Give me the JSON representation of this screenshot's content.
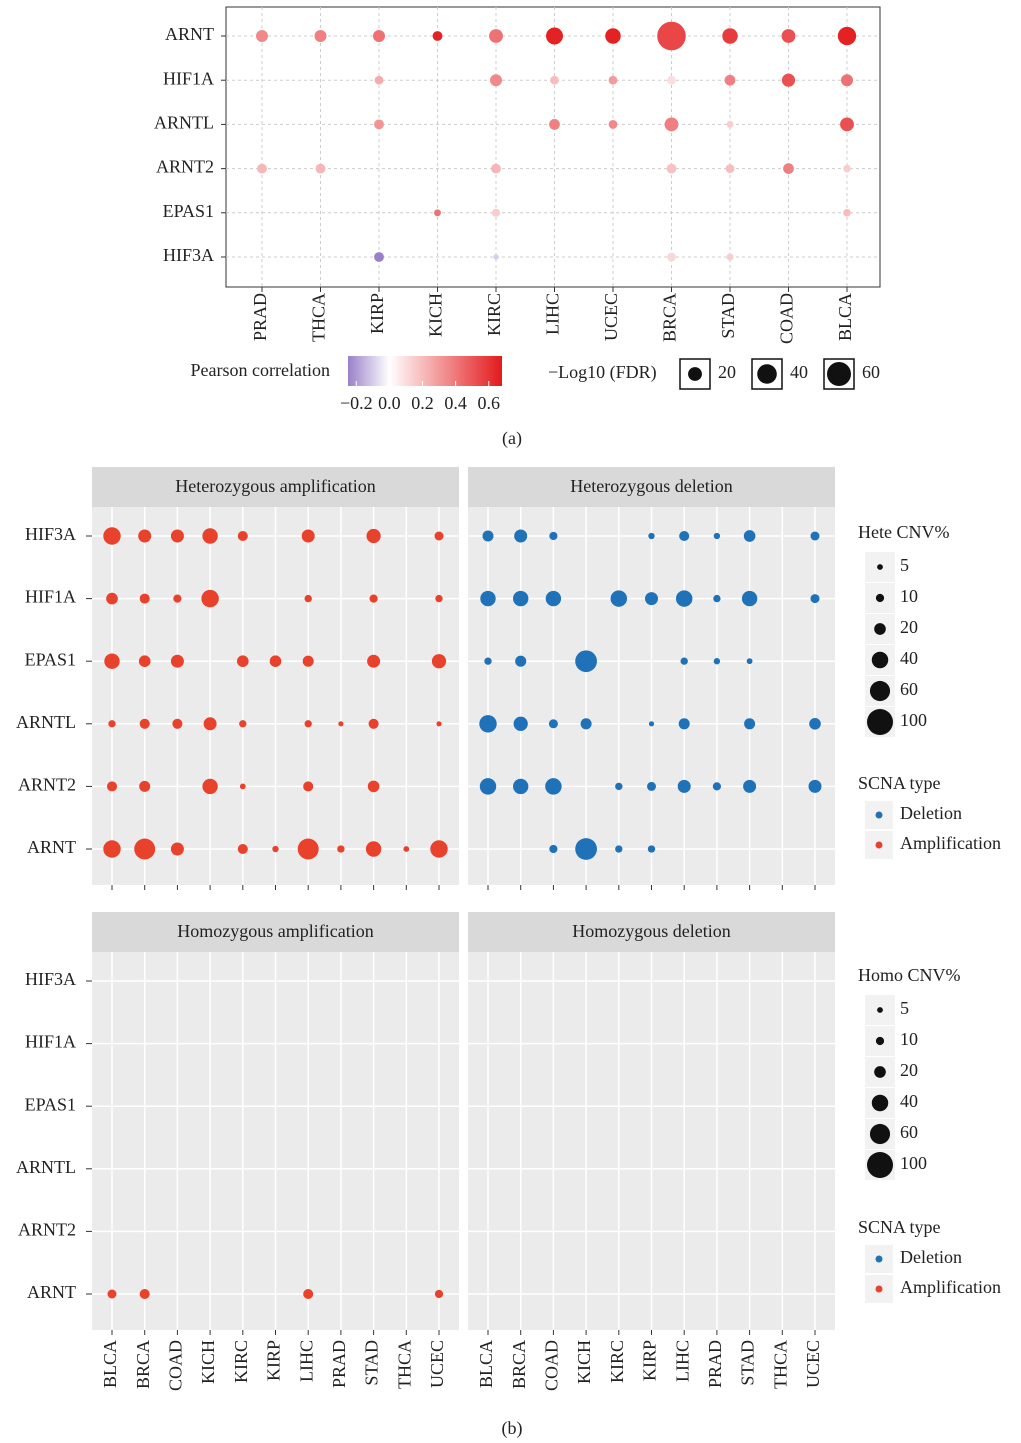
{
  "captions": [
    "(a)",
    "(b)"
  ],
  "chart_data": [
    {
      "type": "bubble-matrix",
      "categories": [
        "PRAD",
        "THCA",
        "KIRP",
        "KICH",
        "KIRC",
        "LIHC",
        "UCEC",
        "BRCA",
        "STAD",
        "COAD",
        "BLCA"
      ],
      "series": [
        {
          "name": "ARNT",
          "values": [
            0.35,
            0.38,
            0.42,
            0.66,
            0.42,
            0.66,
            0.66,
            0.55,
            0.58,
            0.52,
            0.66
          ],
          "sizes": [
            15,
            15,
            15,
            10,
            20,
            30,
            25,
            85,
            25,
            20,
            35
          ]
        },
        {
          "name": "HIF1A",
          "values": [
            null,
            null,
            0.25,
            null,
            0.35,
            0.2,
            0.3,
            0.1,
            0.38,
            0.52,
            0.42
          ],
          "sizes": [
            null,
            null,
            8,
            null,
            15,
            8,
            8,
            8,
            12,
            18,
            15
          ]
        },
        {
          "name": "ARNTL",
          "values": [
            null,
            null,
            0.32,
            null,
            null,
            0.38,
            0.35,
            0.38,
            0.15,
            null,
            0.52
          ],
          "sizes": [
            null,
            null,
            10,
            null,
            null,
            12,
            8,
            20,
            5,
            null,
            20
          ]
        },
        {
          "name": "ARNT2",
          "values": [
            0.22,
            0.22,
            null,
            null,
            0.22,
            null,
            null,
            0.18,
            0.2,
            0.38,
            0.15
          ],
          "sizes": [
            10,
            10,
            null,
            null,
            10,
            null,
            null,
            10,
            8,
            12,
            6
          ]
        },
        {
          "name": "EPAS1",
          "values": [
            null,
            null,
            null,
            0.42,
            0.15,
            null,
            null,
            null,
            null,
            null,
            0.2
          ],
          "sizes": [
            null,
            null,
            null,
            5,
            7,
            null,
            null,
            null,
            null,
            null,
            6
          ]
        },
        {
          "name": "HIF3A",
          "values": [
            null,
            null,
            -0.25,
            null,
            -0.1,
            null,
            null,
            0.12,
            0.15,
            null,
            null
          ],
          "sizes": [
            null,
            null,
            10,
            null,
            3,
            null,
            null,
            8,
            5,
            null,
            null
          ]
        }
      ],
      "colorbar": {
        "title": "Pearson correlation",
        "lim": [
          -0.25,
          0.68
        ],
        "ticks": [
          {
            "value": -0.2,
            "label": "−0.2"
          },
          {
            "value": 0,
            "label": "0.0"
          },
          0.2,
          0.4,
          0.6
        ],
        "colors": [
          "#9a80c8",
          "#ffffff",
          "#e31a1c"
        ]
      },
      "size_legend": {
        "title": "−Log10 (FDR)",
        "values": [
          20,
          40,
          60
        ]
      },
      "grid": true
    },
    {
      "type": "facet-bubble",
      "genes": [
        "HIF3A",
        "HIF1A",
        "EPAS1",
        "ARNTL",
        "ARNT2",
        "ARNT"
      ],
      "categories": [
        "BLCA",
        "BRCA",
        "COAD",
        "KICH",
        "KIRC",
        "KIRP",
        "LIHC",
        "PRAD",
        "STAD",
        "THCA",
        "UCEC"
      ],
      "panels": [
        {
          "title": "Heterozygous amplification",
          "color": "#e8412c",
          "values": [
            [
              45,
              25,
              25,
              35,
              15,
              null,
              25,
              null,
              30,
              null,
              12
            ],
            [
              20,
              15,
              10,
              45,
              null,
              null,
              8,
              null,
              10,
              null,
              8
            ],
            [
              35,
              20,
              25,
              null,
              20,
              20,
              18,
              null,
              25,
              null,
              30
            ],
            [
              8,
              15,
              15,
              25,
              8,
              null,
              8,
              4,
              15,
              null,
              4
            ],
            [
              15,
              18,
              null,
              35,
              5,
              null,
              15,
              null,
              20,
              null,
              null
            ],
            [
              45,
              65,
              25,
              null,
              15,
              6,
              65,
              8,
              35,
              5,
              45
            ]
          ]
        },
        {
          "title": "Heterozygous deletion",
          "color": "#1f72b8",
          "values": [
            [
              18,
              25,
              10,
              null,
              null,
              6,
              15,
              6,
              20,
              null,
              12
            ],
            [
              35,
              35,
              35,
              null,
              40,
              25,
              40,
              8,
              35,
              null,
              12
            ],
            [
              8,
              18,
              null,
              70,
              null,
              null,
              8,
              6,
              5,
              null,
              null
            ],
            [
              45,
              30,
              12,
              18,
              null,
              4,
              18,
              null,
              18,
              null,
              20
            ],
            [
              40,
              35,
              40,
              null,
              8,
              12,
              25,
              10,
              25,
              null,
              25
            ],
            [
              null,
              null,
              10,
              70,
              8,
              8,
              null,
              null,
              null,
              null,
              null
            ]
          ]
        },
        {
          "title": "Homozygous amplification",
          "color": "#e8412c",
          "values": [
            [
              null,
              null,
              null,
              null,
              null,
              null,
              null,
              null,
              null,
              null,
              null
            ],
            [
              null,
              null,
              null,
              null,
              null,
              null,
              null,
              null,
              null,
              null,
              null
            ],
            [
              null,
              null,
              null,
              null,
              null,
              null,
              null,
              null,
              null,
              null,
              null
            ],
            [
              null,
              null,
              null,
              null,
              null,
              null,
              null,
              null,
              null,
              null,
              null
            ],
            [
              null,
              null,
              null,
              null,
              null,
              null,
              null,
              null,
              null,
              null,
              null
            ],
            [
              12,
              15,
              null,
              null,
              null,
              null,
              15,
              null,
              null,
              null,
              10
            ]
          ]
        },
        {
          "title": "Homozygous deletion",
          "color": "#1f72b8",
          "values": [
            [
              null,
              null,
              null,
              null,
              null,
              null,
              null,
              null,
              null,
              null,
              null
            ],
            [
              null,
              null,
              null,
              null,
              null,
              null,
              null,
              null,
              null,
              null,
              null
            ],
            [
              null,
              null,
              null,
              null,
              null,
              null,
              null,
              null,
              null,
              null,
              null
            ],
            [
              null,
              null,
              null,
              null,
              null,
              null,
              null,
              null,
              null,
              null,
              null
            ],
            [
              null,
              null,
              null,
              null,
              null,
              null,
              null,
              null,
              null,
              null,
              null
            ],
            [
              null,
              null,
              null,
              null,
              null,
              null,
              null,
              null,
              null,
              null,
              null
            ]
          ]
        }
      ],
      "size_legends": [
        {
          "title": "Hete CNV%",
          "values": [
            5,
            10,
            20,
            40,
            60,
            100
          ]
        },
        {
          "title": "Homo CNV%",
          "values": [
            5,
            10,
            20,
            40,
            60,
            100
          ]
        }
      ],
      "scna_title": "SCNA type",
      "scna_types": [
        {
          "name": "Deletion",
          "color": "#1f72b8"
        },
        {
          "name": "Amplification",
          "color": "#e8412c"
        }
      ],
      "grid": true
    }
  ]
}
